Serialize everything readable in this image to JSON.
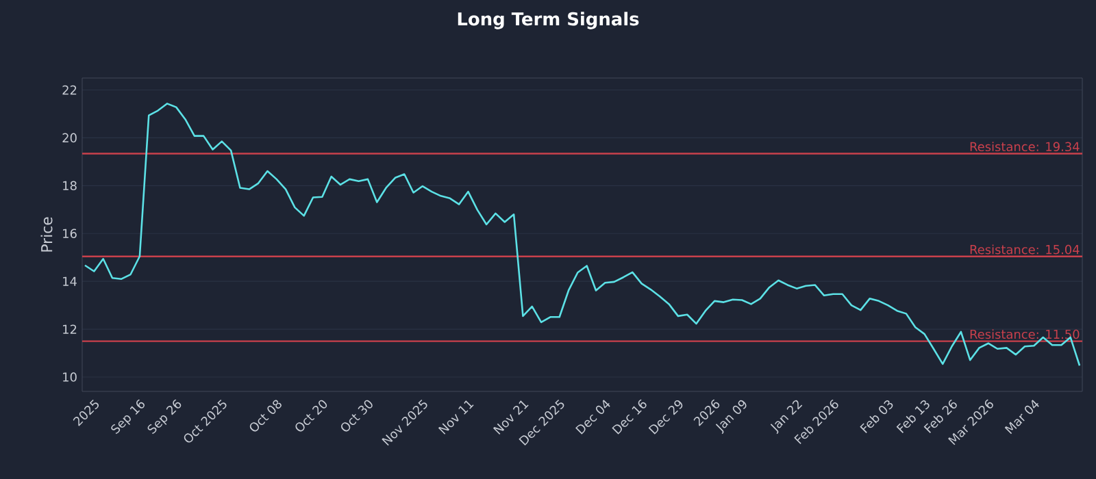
{
  "chart_data": {
    "type": "line",
    "title": "Long Term Signals",
    "ylabel": "Price",
    "categories": [
      null,
      "2025",
      null,
      null,
      null,
      null,
      "Sep 16",
      null,
      null,
      null,
      "Sep 26",
      null,
      null,
      null,
      null,
      "Oct 2025",
      null,
      null,
      null,
      null,
      null,
      "Oct 08",
      null,
      null,
      null,
      null,
      "Oct 20",
      null,
      null,
      null,
      null,
      "Oct 30",
      null,
      null,
      null,
      null,
      null,
      "Nov 2025",
      null,
      null,
      null,
      null,
      "Nov 11",
      null,
      null,
      null,
      null,
      null,
      "Nov 21",
      null,
      null,
      null,
      "Dec 2025",
      null,
      null,
      null,
      null,
      "Dec 04",
      null,
      null,
      null,
      "Dec 16",
      null,
      null,
      null,
      "Dec 29",
      null,
      null,
      null,
      "2026",
      null,
      null,
      "Jan 09",
      null,
      null,
      null,
      null,
      null,
      "Jan 22",
      null,
      null,
      null,
      "Feb 2026",
      null,
      null,
      null,
      null,
      null,
      "Feb 03",
      null,
      null,
      null,
      "Feb 13",
      null,
      null,
      "Feb 26",
      null,
      null,
      null,
      "Mar 2026",
      null,
      null,
      null,
      null,
      "Mar 04",
      null,
      null,
      null,
      null,
      null
    ],
    "ylim": [
      9.4,
      22.5
    ],
    "yticks": [
      10,
      12,
      14,
      16,
      18,
      20,
      22
    ],
    "grid": "y",
    "series": [
      {
        "color": "#5ce1e6",
        "values": [
          14.67,
          14.42,
          14.94,
          14.14,
          14.1,
          14.29,
          15.05,
          20.94,
          21.14,
          21.43,
          21.28,
          20.77,
          20.08,
          20.08,
          19.51,
          19.85,
          19.47,
          17.91,
          17.85,
          18.1,
          18.61,
          18.27,
          17.85,
          17.09,
          16.74,
          17.51,
          17.53,
          18.38,
          18.04,
          18.27,
          18.19,
          18.27,
          17.31,
          17.91,
          18.33,
          18.48,
          17.71,
          17.98,
          17.75,
          17.57,
          17.47,
          17.22,
          17.75,
          16.99,
          16.38,
          16.84,
          16.48,
          16.8,
          12.55,
          12.95,
          12.29,
          12.51,
          12.51,
          13.62,
          14.37,
          14.65,
          13.62,
          13.94,
          13.98,
          14.17,
          14.38,
          13.91,
          13.66,
          13.37,
          13.05,
          12.55,
          12.61,
          12.23,
          12.77,
          13.18,
          13.13,
          13.24,
          13.22,
          13.05,
          13.28,
          13.75,
          14.04,
          13.85,
          13.7,
          13.81,
          13.85,
          13.41,
          13.47,
          13.47,
          13.0,
          12.8,
          13.28,
          13.18,
          13.0,
          12.77,
          12.65,
          12.08,
          11.8,
          11.18,
          10.55,
          11.28,
          11.89,
          10.71,
          11.22,
          11.41,
          11.18,
          11.22,
          10.94,
          11.28,
          11.31,
          11.66,
          11.34,
          11.34,
          11.66,
          10.48
        ]
      }
    ],
    "ref_lines": [
      {
        "axis": "y",
        "value": 19.34,
        "label": "Resistance: 19.34",
        "color": "#c9404c"
      },
      {
        "axis": "y",
        "value": 15.04,
        "label": "Resistance: 15.04",
        "color": "#c9404c"
      },
      {
        "axis": "y",
        "value": 11.5,
        "label": "Resistance: 11.50",
        "color": "#c9404c"
      }
    ]
  }
}
